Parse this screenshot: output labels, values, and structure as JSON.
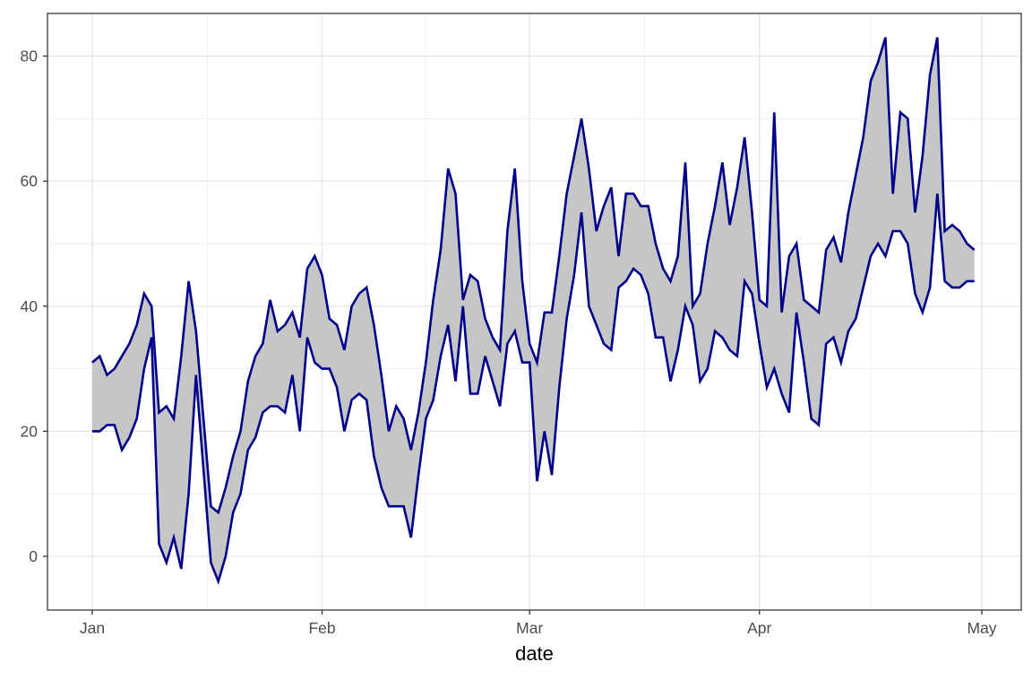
{
  "chart_data": {
    "type": "area",
    "subtype": "ribbon-band",
    "title": "",
    "xlabel": "date",
    "ylabel": "",
    "x_tick_labels": [
      "Jan",
      "Feb",
      "Mar",
      "Apr",
      "May"
    ],
    "x_tick_day_index": [
      0,
      31,
      59,
      90,
      120
    ],
    "x_minor_day_index": [
      15.5,
      45,
      74.5,
      105
    ],
    "y_ticks": [
      0,
      20,
      40,
      60,
      80
    ],
    "y_minor_ticks": [
      10,
      30,
      50,
      70
    ],
    "ylim": [
      -8.6,
      86.9
    ],
    "n_days": 120,
    "grid": true,
    "legend": "none",
    "series": [
      {
        "name": "upper",
        "values": [
          31,
          32,
          29,
          30,
          32,
          34,
          37,
          42,
          40,
          23,
          24,
          22,
          32,
          44,
          36,
          22,
          8,
          7,
          11,
          16,
          20,
          28,
          32,
          34,
          41,
          36,
          37,
          39,
          35,
          46,
          48,
          45,
          38,
          37,
          33,
          40,
          42,
          43,
          37,
          29,
          20,
          24,
          22,
          17,
          23,
          31,
          41,
          49,
          62,
          58,
          41,
          45,
          44,
          38,
          35,
          33,
          52,
          62,
          44,
          34,
          31,
          39,
          39,
          48,
          58,
          64,
          70,
          62,
          52,
          56,
          59,
          48,
          58,
          58,
          56,
          56,
          50,
          46,
          44,
          48,
          63,
          40,
          42,
          50,
          56,
          63,
          53,
          59,
          67,
          55,
          41,
          40,
          71,
          39,
          48,
          50,
          41,
          40,
          39,
          49,
          51,
          47,
          55,
          61,
          67,
          76,
          79,
          83,
          58,
          71,
          70,
          55,
          64,
          77,
          83,
          52,
          53,
          52,
          50,
          49
        ]
      },
      {
        "name": "lower",
        "values": [
          20,
          20,
          21,
          21,
          17,
          19,
          22,
          30,
          35,
          2,
          -1,
          3,
          -2,
          10,
          29,
          14,
          -1,
          -4,
          0,
          7,
          10,
          17,
          19,
          23,
          24,
          24,
          23,
          29,
          20,
          35,
          31,
          30,
          30,
          27,
          20,
          25,
          26,
          25,
          16,
          11,
          8,
          8,
          8,
          3,
          13,
          22,
          25,
          32,
          37,
          28,
          40,
          26,
          26,
          32,
          28,
          24,
          34,
          36,
          31,
          31,
          12,
          20,
          13,
          27,
          38,
          45,
          55,
          40,
          37,
          34,
          33,
          43,
          44,
          46,
          45,
          42,
          35,
          35,
          28,
          33,
          40,
          37,
          28,
          30,
          36,
          35,
          33,
          32,
          44,
          42,
          34,
          27,
          30,
          26,
          23,
          39,
          31,
          22,
          21,
          34,
          35,
          31,
          36,
          38,
          43,
          48,
          50,
          48,
          52,
          52,
          50,
          42,
          39,
          43,
          58,
          44,
          43,
          43,
          44,
          44
        ]
      }
    ],
    "colors": {
      "line": "#00008B",
      "fill": "#c6c6c6",
      "grid_major": "#e3e3e3",
      "grid_minor": "#f1f1f1",
      "panel_border": "#3a3a3a",
      "tick_mark": "#333333",
      "tick_label": "#4d4d4d",
      "axis_title": "#000000",
      "background": "#ffffff"
    }
  }
}
